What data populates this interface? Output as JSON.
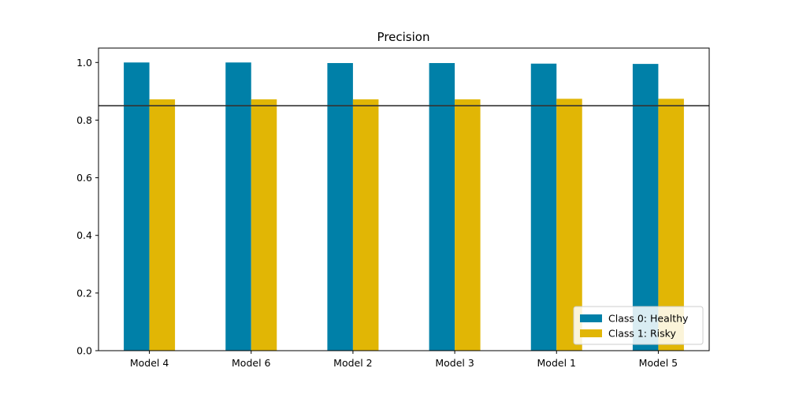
{
  "chart_data": {
    "type": "bar",
    "title": "Precision",
    "xlabel": "",
    "ylabel": "",
    "categories": [
      "Model 4",
      "Model 6",
      "Model 2",
      "Model 3",
      "Model 1",
      "Model 5"
    ],
    "series": [
      {
        "name": "Class 0: Healthy",
        "color": "#0080a8",
        "values": [
          1.0,
          1.0,
          0.998,
          0.998,
          0.996,
          0.995
        ]
      },
      {
        "name": "Class 1: Risky",
        "color": "#e1b605",
        "values": [
          0.872,
          0.872,
          0.872,
          0.872,
          0.874,
          0.874
        ]
      }
    ],
    "ylim": [
      0,
      1.05
    ],
    "yticks": [
      "0.0",
      "0.2",
      "0.4",
      "0.6",
      "0.8",
      "1.0"
    ],
    "reference_line": {
      "value": 0.85,
      "color": "#333333"
    },
    "grid": false,
    "legend_position": "lower-right"
  }
}
